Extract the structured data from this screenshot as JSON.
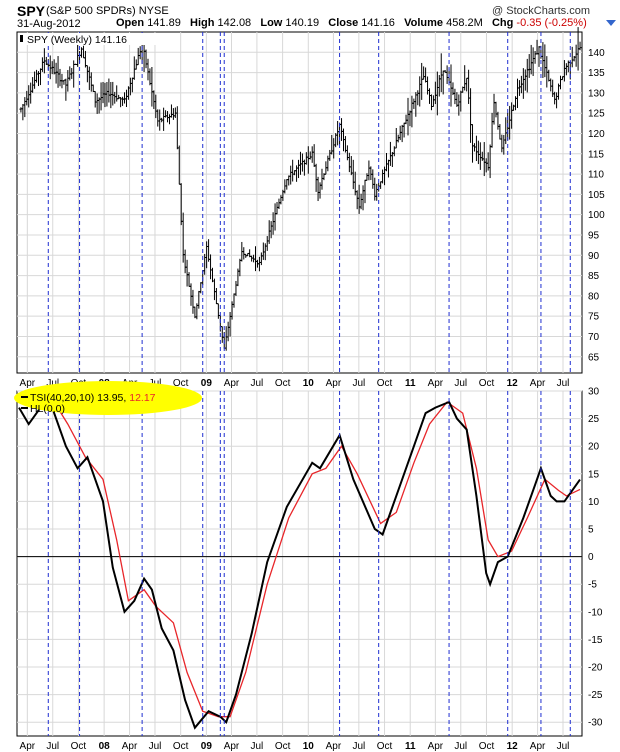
{
  "header": {
    "symbol": "SPY",
    "name": "(S&P 500 SPDRs)",
    "exchange": "NYSE",
    "date": "31-Aug-2012",
    "watermark": "@ StockCharts.com",
    "open_label": "Open",
    "open": "141.89",
    "high_label": "High",
    "high": "142.08",
    "low_label": "Low",
    "low": "140.19",
    "close_label": "Close",
    "close": "141.16",
    "volume_label": "Volume",
    "volume": "458.2M",
    "chg_label": "Chg",
    "chg": "-0.35 (-0.25%)"
  },
  "colors": {
    "price_bars": "#000000",
    "tsi_line": "#000000",
    "signal_line": "#e8262a",
    "vlines": "#1f2fd1",
    "grid": "#d8d8d8",
    "highlight": "#ffff00",
    "zero_line": "#000000"
  },
  "chart_data": [
    {
      "type": "ohlc",
      "title": "SPY (Weekly) 141.16",
      "legend_label": "SPY (Weekly) 141.16",
      "y_ticks": [
        65,
        70,
        75,
        80,
        85,
        90,
        95,
        100,
        105,
        110,
        115,
        120,
        125,
        130,
        135,
        140
      ],
      "ylim": [
        61,
        145
      ],
      "y_axis_side": "right",
      "grid": true,
      "anchors": [
        {
          "date": "2007-03-09",
          "close": 126
        },
        {
          "date": "2007-06-01",
          "close": 138
        },
        {
          "date": "2007-08-17",
          "close": 132
        },
        {
          "date": "2007-10-12",
          "close": 141
        },
        {
          "date": "2007-11-30",
          "close": 128
        },
        {
          "date": "2008-01-18",
          "close": 130
        },
        {
          "date": "2008-03-14",
          "close": 128
        },
        {
          "date": "2008-05-16",
          "close": 142
        },
        {
          "date": "2008-07-11",
          "close": 123
        },
        {
          "date": "2008-09-12",
          "close": 125
        },
        {
          "date": "2008-10-10",
          "close": 90
        },
        {
          "date": "2008-11-21",
          "close": 75
        },
        {
          "date": "2009-01-02",
          "close": 92
        },
        {
          "date": "2009-03-06",
          "close": 67
        },
        {
          "date": "2009-05-08",
          "close": 91
        },
        {
          "date": "2009-07-10",
          "close": 88
        },
        {
          "date": "2009-10-16",
          "close": 109
        },
        {
          "date": "2010-01-15",
          "close": 115
        },
        {
          "date": "2010-02-05",
          "close": 106
        },
        {
          "date": "2010-04-23",
          "close": 122
        },
        {
          "date": "2010-07-02",
          "close": 102
        },
        {
          "date": "2010-08-06",
          "close": 112
        },
        {
          "date": "2010-08-27",
          "close": 105
        },
        {
          "date": "2011-02-18",
          "close": 134
        },
        {
          "date": "2011-03-18",
          "close": 127
        },
        {
          "date": "2011-04-29",
          "close": 136
        },
        {
          "date": "2011-06-17",
          "close": 127
        },
        {
          "date": "2011-07-22",
          "close": 134
        },
        {
          "date": "2011-08-12",
          "close": 117
        },
        {
          "date": "2011-10-07",
          "close": 112
        },
        {
          "date": "2011-10-28",
          "close": 128
        },
        {
          "date": "2011-11-25",
          "close": 116
        },
        {
          "date": "2012-01-20",
          "close": 131
        },
        {
          "date": "2012-04-06",
          "close": 141
        },
        {
          "date": "2012-06-01",
          "close": 128
        },
        {
          "date": "2012-07-06",
          "close": 136
        },
        {
          "date": "2012-08-31",
          "close": 141.16
        }
      ]
    },
    {
      "type": "line",
      "legend": [
        {
          "label": "TSI(40,20,10) 13.95,",
          "value2": "12.17"
        },
        {
          "label": "HL(0.0)"
        }
      ],
      "y_ticks": [
        -30,
        -25,
        -20,
        -15,
        -10,
        -5,
        0,
        5,
        10,
        15,
        20,
        25,
        30
      ],
      "ylim": [
        -32.5,
        30
      ],
      "y_axis_side": "right",
      "zero_line": 0,
      "series": [
        {
          "name": "TSI(40,20,10)",
          "color": "#000000",
          "points": [
            {
              "date": "2007-03-02",
              "value": 27
            },
            {
              "date": "2007-04-06",
              "value": 24
            },
            {
              "date": "2007-05-04",
              "value": 26
            },
            {
              "date": "2007-06-15",
              "value": 29
            },
            {
              "date": "2007-08-17",
              "value": 20
            },
            {
              "date": "2007-09-28",
              "value": 16
            },
            {
              "date": "2007-11-02",
              "value": 18
            },
            {
              "date": "2007-12-28",
              "value": 10
            },
            {
              "date": "2008-02-01",
              "value": -2
            },
            {
              "date": "2008-03-14",
              "value": -10
            },
            {
              "date": "2008-04-18",
              "value": -8
            },
            {
              "date": "2008-05-23",
              "value": -4
            },
            {
              "date": "2008-06-20",
              "value": -6
            },
            {
              "date": "2008-07-25",
              "value": -13
            },
            {
              "date": "2008-09-05",
              "value": -17
            },
            {
              "date": "2008-10-17",
              "value": -26
            },
            {
              "date": "2008-11-21",
              "value": -31
            },
            {
              "date": "2009-01-09",
              "value": -28
            },
            {
              "date": "2009-02-20",
              "value": -29
            },
            {
              "date": "2009-03-13",
              "value": -30
            },
            {
              "date": "2009-04-17",
              "value": -25
            },
            {
              "date": "2009-06-12",
              "value": -14
            },
            {
              "date": "2009-08-07",
              "value": -1
            },
            {
              "date": "2009-10-16",
              "value": 9
            },
            {
              "date": "2010-01-15",
              "value": 17
            },
            {
              "date": "2010-02-12",
              "value": 16
            },
            {
              "date": "2010-04-23",
              "value": 22
            },
            {
              "date": "2010-06-11",
              "value": 14
            },
            {
              "date": "2010-08-27",
              "value": 5
            },
            {
              "date": "2010-09-24",
              "value": 4
            },
            {
              "date": "2010-11-12",
              "value": 11
            },
            {
              "date": "2011-01-14",
              "value": 20
            },
            {
              "date": "2011-02-25",
              "value": 26
            },
            {
              "date": "2011-04-01",
              "value": 27
            },
            {
              "date": "2011-05-20",
              "value": 28
            },
            {
              "date": "2011-06-17",
              "value": 25
            },
            {
              "date": "2011-07-22",
              "value": 23
            },
            {
              "date": "2011-08-26",
              "value": 11
            },
            {
              "date": "2011-09-30",
              "value": -3
            },
            {
              "date": "2011-10-14",
              "value": -5
            },
            {
              "date": "2011-11-11",
              "value": -1
            },
            {
              "date": "2011-12-16",
              "value": 0
            },
            {
              "date": "2012-02-10",
              "value": 7
            },
            {
              "date": "2012-03-23",
              "value": 13
            },
            {
              "date": "2012-04-13",
              "value": 16
            },
            {
              "date": "2012-05-18",
              "value": 11
            },
            {
              "date": "2012-06-08",
              "value": 10
            },
            {
              "date": "2012-07-06",
              "value": 10
            },
            {
              "date": "2012-08-31",
              "value": 13.95
            }
          ]
        },
        {
          "name": "Signal",
          "color": "#e8262a",
          "points": [
            {
              "date": "2007-05-25",
              "value": 27
            },
            {
              "date": "2007-07-06",
              "value": 28
            },
            {
              "date": "2007-08-24",
              "value": 24
            },
            {
              "date": "2007-10-26",
              "value": 18
            },
            {
              "date": "2007-12-28",
              "value": 14
            },
            {
              "date": "2008-02-15",
              "value": 3
            },
            {
              "date": "2008-03-28",
              "value": -8
            },
            {
              "date": "2008-05-23",
              "value": -6
            },
            {
              "date": "2008-07-04",
              "value": -9
            },
            {
              "date": "2008-09-05",
              "value": -12
            },
            {
              "date": "2008-10-24",
              "value": -21
            },
            {
              "date": "2008-12-19",
              "value": -28
            },
            {
              "date": "2009-02-13",
              "value": -29
            },
            {
              "date": "2009-03-27",
              "value": -29
            },
            {
              "date": "2009-05-22",
              "value": -21
            },
            {
              "date": "2009-08-07",
              "value": -5
            },
            {
              "date": "2009-10-23",
              "value": 7
            },
            {
              "date": "2010-01-15",
              "value": 15
            },
            {
              "date": "2010-03-05",
              "value": 16
            },
            {
              "date": "2010-04-30",
              "value": 20
            },
            {
              "date": "2010-06-25",
              "value": 15
            },
            {
              "date": "2010-09-17",
              "value": 6
            },
            {
              "date": "2010-11-12",
              "value": 8
            },
            {
              "date": "2011-01-14",
              "value": 17
            },
            {
              "date": "2011-03-11",
              "value": 24
            },
            {
              "date": "2011-05-13",
              "value": 28
            },
            {
              "date": "2011-07-08",
              "value": 26
            },
            {
              "date": "2011-08-26",
              "value": 16
            },
            {
              "date": "2011-10-07",
              "value": 3
            },
            {
              "date": "2011-11-11",
              "value": 0
            },
            {
              "date": "2011-12-30",
              "value": 1
            },
            {
              "date": "2012-02-24",
              "value": 7
            },
            {
              "date": "2012-04-27",
              "value": 14
            },
            {
              "date": "2012-06-15",
              "value": 12
            },
            {
              "date": "2012-07-13",
              "value": 11
            },
            {
              "date": "2012-08-31",
              "value": 12.17
            }
          ]
        }
      ]
    }
  ],
  "x_axis": {
    "start": "2007-02-23",
    "end": "2012-09-07",
    "tick_labels": [
      {
        "date": "2007-04-01",
        "label": "Apr",
        "bold": false
      },
      {
        "date": "2007-07-01",
        "label": "Jul",
        "bold": false
      },
      {
        "date": "2007-10-01",
        "label": "Oct",
        "bold": false
      },
      {
        "date": "2008-01-01",
        "label": "08",
        "bold": true
      },
      {
        "date": "2008-04-01",
        "label": "Apr",
        "bold": false
      },
      {
        "date": "2008-07-01",
        "label": "Jul",
        "bold": false
      },
      {
        "date": "2008-10-01",
        "label": "Oct",
        "bold": false
      },
      {
        "date": "2009-01-01",
        "label": "09",
        "bold": true
      },
      {
        "date": "2009-04-01",
        "label": "Apr",
        "bold": false
      },
      {
        "date": "2009-07-01",
        "label": "Jul",
        "bold": false
      },
      {
        "date": "2009-10-01",
        "label": "Oct",
        "bold": false
      },
      {
        "date": "2010-01-01",
        "label": "10",
        "bold": true
      },
      {
        "date": "2010-04-01",
        "label": "Apr",
        "bold": false
      },
      {
        "date": "2010-07-01",
        "label": "Jul",
        "bold": false
      },
      {
        "date": "2010-10-01",
        "label": "Oct",
        "bold": false
      },
      {
        "date": "2011-01-01",
        "label": "11",
        "bold": true
      },
      {
        "date": "2011-04-01",
        "label": "Apr",
        "bold": false
      },
      {
        "date": "2011-07-01",
        "label": "Jul",
        "bold": false
      },
      {
        "date": "2011-10-01",
        "label": "Oct",
        "bold": false
      },
      {
        "date": "2012-01-01",
        "label": "12",
        "bold": true
      },
      {
        "date": "2012-04-01",
        "label": "Apr",
        "bold": false
      },
      {
        "date": "2012-07-01",
        "label": "Jul",
        "bold": false
      }
    ],
    "signal_lines": [
      "2007-06-15",
      "2007-10-05",
      "2008-05-16",
      "2008-12-19",
      "2009-03-06",
      "2009-02-20",
      "2010-04-23",
      "2010-09-10",
      "2011-05-20",
      "2011-12-16",
      "2012-04-13",
      "2012-07-27"
    ]
  }
}
